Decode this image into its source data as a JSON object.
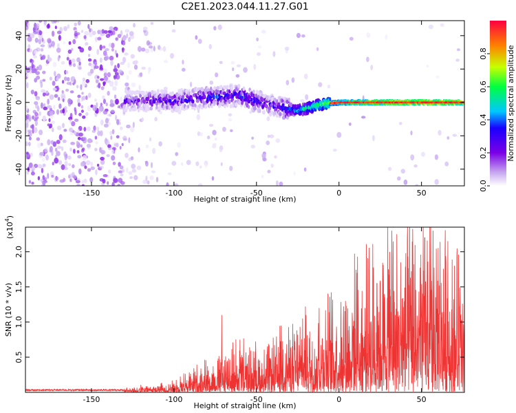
{
  "title": "C2E1.2023.044.11.27.G01",
  "chart_data": [
    {
      "type": "heatmap",
      "xlabel": "Height of straight line (km)",
      "ylabel": "Frequency (Hz)",
      "xlim": [
        -190,
        76
      ],
      "ylim": [
        -50,
        49
      ],
      "x_ticks": [
        -150,
        -100,
        -50,
        0,
        50
      ],
      "y_ticks": [
        -40,
        -20,
        0,
        20,
        40
      ],
      "colorbar": {
        "label": "Normalized spectral amplitude",
        "range": [
          0,
          1
        ],
        "ticks": [
          0.0,
          0.2,
          0.4,
          0.6,
          0.8
        ],
        "colors": [
          "#ffffff",
          "#c0a0f0",
          "#7a00e6",
          "#1a00ff",
          "#00c8ff",
          "#00ff40",
          "#c8ff00",
          "#ff8000",
          "#ff0040"
        ]
      },
      "ridge": [
        {
          "x": -130,
          "freq": 1,
          "amp": 0.35
        },
        {
          "x": -100,
          "freq": 1,
          "amp": 0.4
        },
        {
          "x": -80,
          "freq": 3,
          "amp": 0.45
        },
        {
          "x": -60,
          "freq": 4,
          "amp": 0.45
        },
        {
          "x": -40,
          "freq": -2,
          "amp": 0.4
        },
        {
          "x": -25,
          "freq": -5,
          "amp": 0.55
        },
        {
          "x": -10,
          "freq": -1,
          "amp": 0.7
        },
        {
          "x": 0,
          "freq": 0,
          "amp": 0.8
        },
        {
          "x": 20,
          "freq": 0,
          "amp": 0.9
        },
        {
          "x": 50,
          "freq": 0,
          "amp": 0.95
        },
        {
          "x": 76,
          "freq": 0,
          "amp": 0.9
        }
      ]
    },
    {
      "type": "line",
      "xlabel": "Height of straight line (km)",
      "ylabel": "SNR (10 * v/v)",
      "y_scale_label": "(x10",
      "y_scale_exp": "4",
      "xlim": [
        -190,
        76
      ],
      "ylim": [
        0,
        2.35
      ],
      "x_ticks": [
        -150,
        -100,
        -50,
        0,
        50
      ],
      "y_ticks": [
        0.5,
        1.0,
        1.5,
        2.0
      ],
      "y_tick_labels": [
        "0.5",
        "1.0",
        "1.5",
        "2.0"
      ],
      "series_color": "#ee3333",
      "envelope": [
        {
          "x": -190,
          "y": 0.05
        },
        {
          "x": -130,
          "y": 0.06
        },
        {
          "x": -110,
          "y": 0.1
        },
        {
          "x": -100,
          "y": 0.15
        },
        {
          "x": -90,
          "y": 0.3
        },
        {
          "x": -75,
          "y": 0.45
        },
        {
          "x": -65,
          "y": 0.6
        },
        {
          "x": -55,
          "y": 0.6
        },
        {
          "x": -45,
          "y": 0.55
        },
        {
          "x": -35,
          "y": 0.75
        },
        {
          "x": -25,
          "y": 0.85
        },
        {
          "x": -15,
          "y": 0.95
        },
        {
          "x": -5,
          "y": 1.2
        },
        {
          "x": 5,
          "y": 1.4
        },
        {
          "x": 15,
          "y": 1.6
        },
        {
          "x": 25,
          "y": 1.75
        },
        {
          "x": 35,
          "y": 1.9
        },
        {
          "x": 45,
          "y": 2.0
        },
        {
          "x": 55,
          "y": 2.1
        },
        {
          "x": 65,
          "y": 1.9
        },
        {
          "x": 76,
          "y": 1.6
        }
      ],
      "peaks": [
        {
          "x": -71,
          "y": 1.1
        },
        {
          "x": -60,
          "y": 0.75
        },
        {
          "x": -35,
          "y": 0.95
        },
        {
          "x": -22,
          "y": 1.05
        },
        {
          "x": -20,
          "y": 1.1
        },
        {
          "x": -12,
          "y": 1.2
        },
        {
          "x": 4,
          "y": 1.3
        },
        {
          "x": 11,
          "y": 1.7
        },
        {
          "x": 23,
          "y": 1.55
        },
        {
          "x": 30,
          "y": 1.75
        },
        {
          "x": 32,
          "y": 2.3
        },
        {
          "x": 35,
          "y": 2.25
        },
        {
          "x": 52,
          "y": 2.2
        },
        {
          "x": 55,
          "y": 2.35
        },
        {
          "x": 57,
          "y": 2.3
        },
        {
          "x": 66,
          "y": 2.15
        },
        {
          "x": 70,
          "y": 1.8
        }
      ]
    }
  ]
}
